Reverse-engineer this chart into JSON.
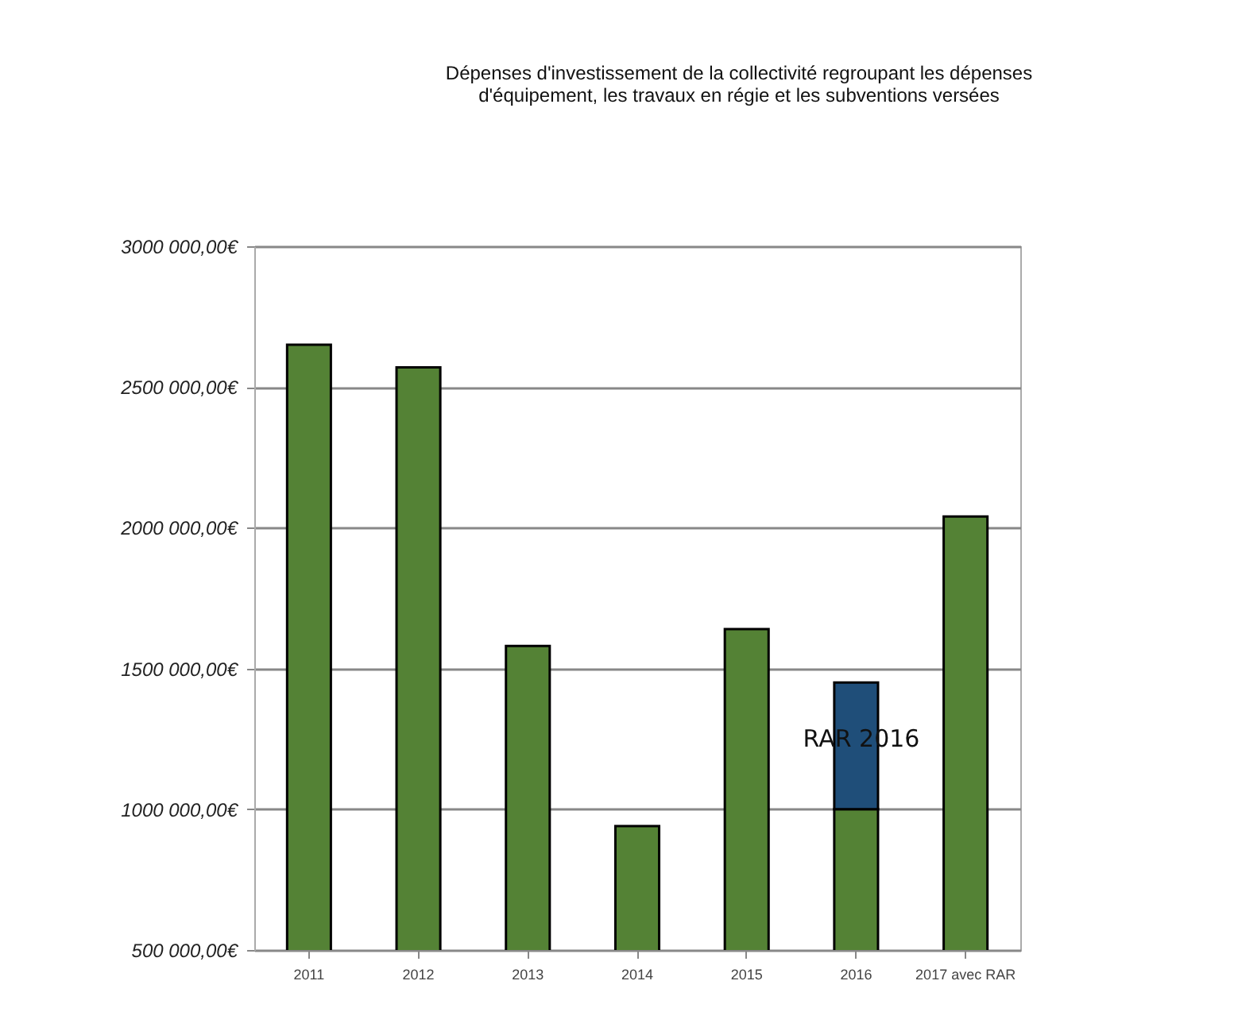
{
  "chart_data": {
    "type": "bar",
    "title": [
      "Dépenses d'investissement de la collectivité regroupant les dépenses",
      "d'équipement, les travaux en régie et les subventions versées"
    ],
    "categories": [
      "2011",
      "2012",
      "2013",
      "2014",
      "2015",
      "2016",
      "2017 avec RAR"
    ],
    "series": [
      {
        "color": "#548235",
        "values": [
          2650000,
          2570000,
          1580000,
          940000,
          1640000,
          1000000,
          2040000
        ]
      },
      {
        "color": "#1f4e79",
        "values": [
          null,
          null,
          null,
          null,
          null,
          450000,
          null
        ],
        "base": [
          null,
          null,
          null,
          null,
          null,
          1000000,
          null
        ]
      }
    ],
    "ylim": [
      500000,
      3000000
    ],
    "yticks": [
      {
        "value": 500000,
        "label": "500 000,00€"
      },
      {
        "value": 1000000,
        "label": "1000 000,00€"
      },
      {
        "value": 1500000,
        "label": "1500 000,00€"
      },
      {
        "value": 2000000,
        "label": "2000 000,00€"
      },
      {
        "value": 2500000,
        "label": "2500 000,00€"
      },
      {
        "value": 3000000,
        "label": "3000 000,00€"
      }
    ],
    "grid": "y",
    "legend": false,
    "annotations": [
      "RAR 2016"
    ]
  }
}
